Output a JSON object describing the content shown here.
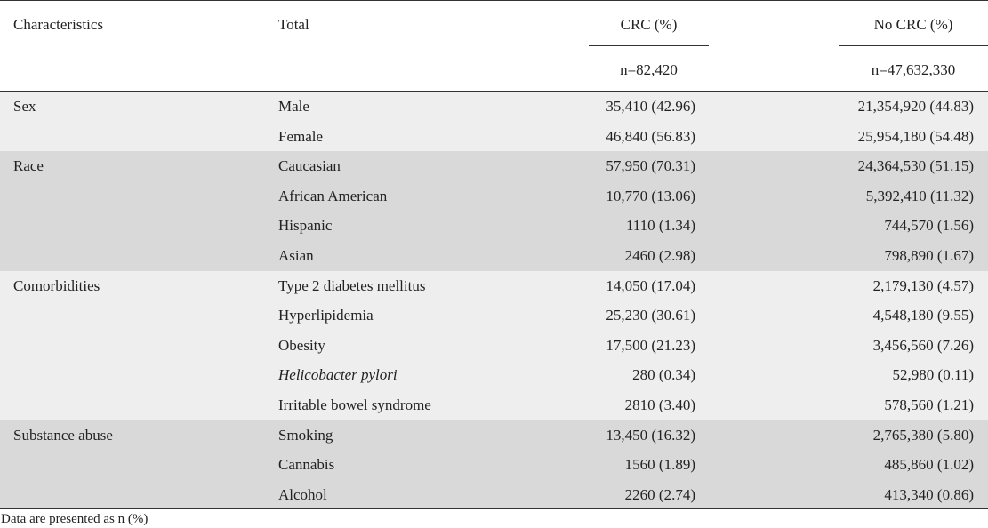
{
  "header": {
    "characteristics": "Characteristics",
    "total": "Total",
    "crc": "CRC (%)",
    "no_crc": "No CRC (%)",
    "crc_n": "n=82,420",
    "no_crc_n": "n=47,632,330"
  },
  "groups": [
    {
      "label": "Sex",
      "shade": "#eeeeee",
      "rows": [
        {
          "total": "Male",
          "crc": "35,410 (42.96)",
          "no_crc": "21,354,920 (44.83)"
        },
        {
          "total": "Female",
          "crc": "46,840 (56.83)",
          "no_crc": "25,954,180 (54.48)"
        }
      ]
    },
    {
      "label": "Race",
      "shade": "#d9d9d9",
      "rows": [
        {
          "total": "Caucasian",
          "crc": "57,950 (70.31)",
          "no_crc": "24,364,530 (51.15)"
        },
        {
          "total": "African American",
          "crc": "10,770 (13.06)",
          "no_crc": "5,392,410 (11.32)"
        },
        {
          "total": "Hispanic",
          "crc": "1110 (1.34)",
          "no_crc": "744,570 (1.56)"
        },
        {
          "total": "Asian",
          "crc": "2460 (2.98)",
          "no_crc": "798,890 (1.67)"
        }
      ]
    },
    {
      "label": "Comorbidities",
      "shade": "#eeeeee",
      "rows": [
        {
          "total": "Type 2 diabetes mellitus",
          "crc": "14,050 (17.04)",
          "no_crc": "2,179,130 (4.57)"
        },
        {
          "total": "Hyperlipidemia",
          "crc": "25,230 (30.61)",
          "no_crc": "4,548,180 (9.55)"
        },
        {
          "total": "Obesity",
          "crc": "17,500 (21.23)",
          "no_crc": "3,456,560 (7.26)"
        },
        {
          "total": "Helicobacter pylori",
          "crc": "280 (0.34)",
          "no_crc": "52,980 (0.11)"
        },
        {
          "total": "Irritable bowel syndrome",
          "crc": "2810 (3.40)",
          "no_crc": "578,560 (1.21)"
        }
      ]
    },
    {
      "label": "Substance abuse",
      "shade": "#d9d9d9",
      "rows": [
        {
          "total": "Smoking",
          "crc": "13,450 (16.32)",
          "no_crc": "2,765,380 (5.80)"
        },
        {
          "total": "Cannabis",
          "crc": "1560 (1.89)",
          "no_crc": "485,860 (1.02)"
        },
        {
          "total": "Alcohol",
          "crc": "2260 (2.74)",
          "no_crc": "413,340 (0.86)"
        }
      ]
    }
  ],
  "footnote": "Data are presented as n (%)"
}
